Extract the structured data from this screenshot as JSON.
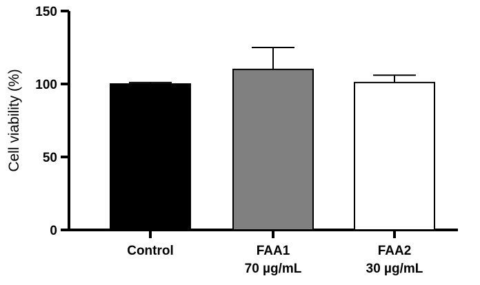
{
  "chart_data": {
    "type": "bar",
    "categories": [
      {
        "line1": "Control",
        "line2": ""
      },
      {
        "line1": "FAA1",
        "line2": "70 µg/mL"
      },
      {
        "line1": "FAA2",
        "line2": "30 µg/mL"
      }
    ],
    "values": [
      100,
      110,
      101
    ],
    "errors": [
      1,
      15,
      5
    ],
    "colors": [
      "#000000",
      "#808080",
      "#ffffff"
    ],
    "ylabel": "Cell viability (%)",
    "ylim": [
      0,
      150
    ],
    "yticks": [
      0,
      50,
      100,
      150
    ],
    "grid": false,
    "legend": "none"
  }
}
